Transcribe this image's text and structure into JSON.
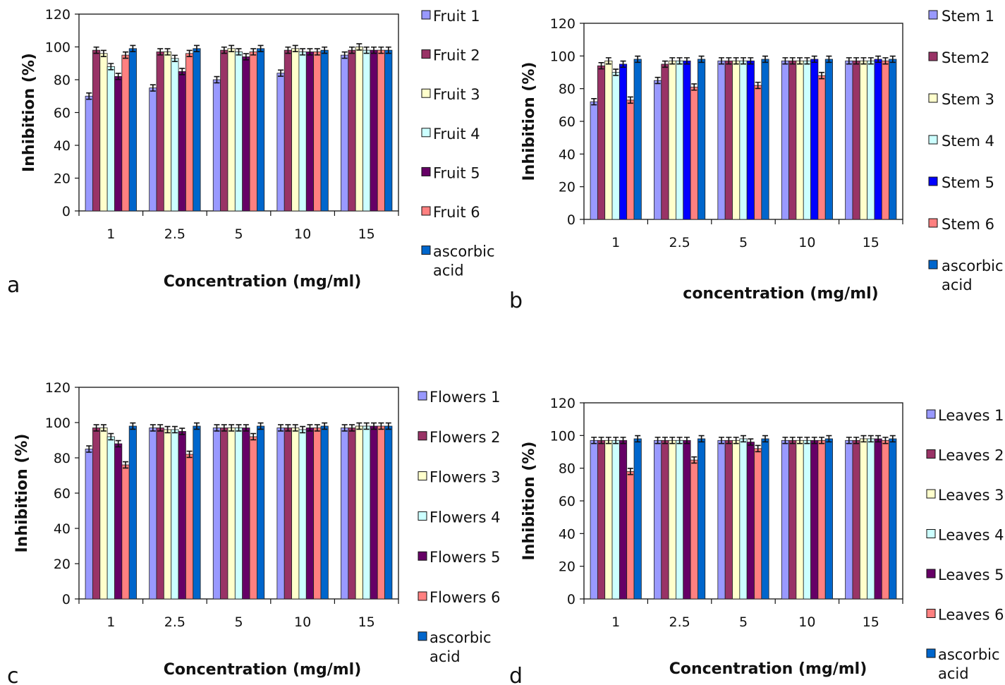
{
  "colors": [
    "#9999ff",
    "#993366",
    "#ffffcc",
    "#ccffff",
    "#660066",
    "#ff8080",
    "#0066cc"
  ],
  "stem_colors": [
    "#9999ff",
    "#993366",
    "#ffffcc",
    "#ccffff",
    "#0000ff",
    "#ff8080",
    "#0066cc"
  ],
  "chart_data": [
    {
      "type": "bar",
      "panel_label": "a",
      "categories": [
        "1",
        "2.5",
        "5",
        "10",
        "15"
      ],
      "xlabel": "Concentration (mg/ml)",
      "ylabel": "Inhibition (%)",
      "ylim": [
        0,
        120
      ],
      "yticks": [
        "0",
        "20",
        "40",
        "60",
        "80",
        "100",
        "120"
      ],
      "grid": false,
      "legend_position": "right",
      "series": [
        {
          "name": "Fruit 1",
          "values": [
            70,
            75,
            80,
            84,
            95
          ]
        },
        {
          "name": "Fruit 2",
          "values": [
            98,
            97,
            98,
            98,
            98
          ]
        },
        {
          "name": "Fruit 3",
          "values": [
            96,
            97,
            99,
            99,
            100
          ]
        },
        {
          "name": "Fruit 4",
          "values": [
            88,
            93,
            97,
            97,
            98
          ]
        },
        {
          "name": "Fruit 5",
          "values": [
            82,
            85,
            94,
            97,
            98
          ]
        },
        {
          "name": "Fruit 6",
          "values": [
            95,
            96,
            97,
            97,
            98
          ]
        },
        {
          "name": "ascorbic acid",
          "values": [
            99,
            99,
            99,
            98,
            98
          ]
        }
      ]
    },
    {
      "type": "bar",
      "panel_label": "b",
      "categories": [
        "1",
        "2.5",
        "5",
        "10",
        "15"
      ],
      "xlabel": "concentration (mg/ml)",
      "ylabel": "Inhibition (%)",
      "ylim": [
        0,
        120
      ],
      "yticks": [
        "0",
        "20",
        "40",
        "60",
        "80",
        "100",
        "120"
      ],
      "grid": false,
      "legend_position": "right",
      "series": [
        {
          "name": "Stem 1",
          "values": [
            72,
            85,
            97,
            97,
            97
          ]
        },
        {
          "name": "Stem2",
          "values": [
            94,
            95,
            97,
            97,
            97
          ]
        },
        {
          "name": "Stem 3",
          "values": [
            97,
            97,
            97,
            97,
            97
          ]
        },
        {
          "name": "Stem 4",
          "values": [
            90,
            97,
            97,
            97,
            97
          ]
        },
        {
          "name": "Stem 5",
          "values": [
            95,
            97,
            97,
            98,
            98
          ]
        },
        {
          "name": "Stem 6",
          "values": [
            73,
            81,
            82,
            88,
            97
          ]
        },
        {
          "name": "ascorbic acid",
          "values": [
            98,
            98,
            98,
            98,
            98
          ]
        }
      ]
    },
    {
      "type": "bar",
      "panel_label": "c",
      "categories": [
        "1",
        "2.5",
        "5",
        "10",
        "15"
      ],
      "xlabel": "Concentration (mg/ml)",
      "ylabel": "Inhibition (%)",
      "ylim": [
        0,
        120
      ],
      "yticks": [
        "0",
        "20",
        "40",
        "60",
        "80",
        "100",
        "120"
      ],
      "grid": false,
      "legend_position": "right",
      "series": [
        {
          "name": "Flowers 1",
          "values": [
            85,
            97,
            97,
            97,
            97
          ]
        },
        {
          "name": "Flowers 2",
          "values": [
            97,
            97,
            97,
            97,
            97
          ]
        },
        {
          "name": "Flowers 3",
          "values": [
            97,
            96,
            97,
            97,
            98
          ]
        },
        {
          "name": "Flowers 4",
          "values": [
            92,
            96,
            97,
            96,
            98
          ]
        },
        {
          "name": "Flowers 5",
          "values": [
            88,
            95,
            97,
            97,
            98
          ]
        },
        {
          "name": "Flowers 6",
          "values": [
            76,
            82,
            92,
            97,
            98
          ]
        },
        {
          "name": "ascorbic acid",
          "values": [
            98,
            98,
            98,
            98,
            98
          ]
        }
      ]
    },
    {
      "type": "bar",
      "panel_label": "d",
      "categories": [
        "1",
        "2.5",
        "5",
        "10",
        "15"
      ],
      "xlabel": "Concentration (mg/ml)",
      "ylabel": "Inhibition (%)",
      "ylim": [
        0,
        120
      ],
      "yticks": [
        "0",
        "20",
        "40",
        "60",
        "80",
        "100",
        "120"
      ],
      "grid": false,
      "legend_position": "right",
      "series": [
        {
          "name": "Leaves 1",
          "values": [
            97,
            97,
            97,
            97,
            97
          ]
        },
        {
          "name": "Leaves 2",
          "values": [
            97,
            97,
            97,
            97,
            97
          ]
        },
        {
          "name": "Leaves 3",
          "values": [
            97,
            97,
            97,
            97,
            98
          ]
        },
        {
          "name": "Leaves 4",
          "values": [
            97,
            97,
            98,
            97,
            98
          ]
        },
        {
          "name": "Leaves 5",
          "values": [
            97,
            97,
            96,
            97,
            98
          ]
        },
        {
          "name": "Leaves 6",
          "values": [
            78,
            85,
            92,
            97,
            97
          ]
        },
        {
          "name": "ascorbic acid",
          "values": [
            98,
            98,
            98,
            98,
            98
          ]
        }
      ]
    }
  ]
}
